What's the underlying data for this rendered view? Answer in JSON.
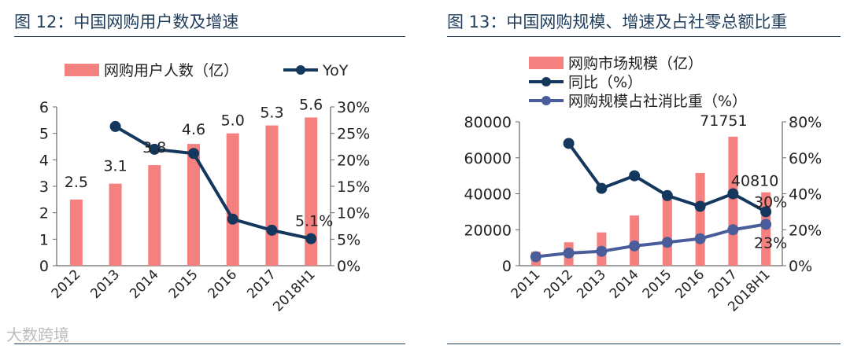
{
  "watermark": "大数跨境",
  "chart_data": [
    {
      "type": "bar",
      "title": "图 12：中国网购用户数及增速",
      "categories": [
        "2012",
        "2013",
        "2014",
        "2015",
        "2016",
        "2017",
        "2018H1"
      ],
      "series": [
        {
          "name": "网购用户人数（亿）",
          "kind": "bar",
          "axis": "left",
          "color": "#f58080",
          "values": [
            2.5,
            3.1,
            3.8,
            4.6,
            5.0,
            5.3,
            5.6
          ],
          "labels": [
            "2.5",
            "3.1",
            "3.8",
            "4.6",
            "5.0",
            "5.3",
            "5.6"
          ]
        },
        {
          "name": "YoY",
          "kind": "line",
          "axis": "right",
          "color": "#14375e",
          "values": [
            null,
            26.3,
            22.0,
            21.2,
            8.8,
            6.7,
            5.1
          ],
          "labels": [
            null,
            null,
            null,
            null,
            null,
            null,
            "5.1%"
          ]
        }
      ],
      "yleft": {
        "min": 0,
        "max": 6,
        "ticks": [
          "0",
          "1",
          "2",
          "3",
          "4",
          "5",
          "6"
        ]
      },
      "yright": {
        "min": 0,
        "max": 30,
        "ticks": [
          "0%",
          "5%",
          "10%",
          "15%",
          "20%",
          "25%",
          "30%"
        ]
      }
    },
    {
      "type": "bar",
      "title": "图 13：中国网购规模、增速及占社零总额比重",
      "categories": [
        "2011",
        "2012",
        "2013",
        "2014",
        "2015",
        "2016",
        "2017",
        "2018H1"
      ],
      "series": [
        {
          "name": "网购市场规模（亿）",
          "kind": "bar",
          "axis": "left",
          "color": "#f58080",
          "values": [
            7800,
            13000,
            18500,
            27900,
            38800,
            51600,
            71751,
            40810
          ],
          "labels": [
            null,
            null,
            null,
            null,
            null,
            null,
            "71751",
            "40810"
          ]
        },
        {
          "name": "同比（%）",
          "kind": "line",
          "axis": "right",
          "color": "#14375e",
          "values": [
            null,
            68,
            43,
            50,
            39,
            33,
            40,
            30
          ],
          "labels": [
            null,
            null,
            null,
            null,
            null,
            null,
            null,
            "30%"
          ]
        },
        {
          "name": "网购规模占社消比重（%）",
          "kind": "line",
          "axis": "right",
          "color": "#4a5d9a",
          "values": [
            5,
            7,
            8,
            11,
            13,
            15,
            20,
            23
          ],
          "labels": [
            null,
            null,
            null,
            null,
            null,
            null,
            null,
            "23%"
          ]
        }
      ],
      "yleft": {
        "min": 0,
        "max": 80000,
        "ticks": [
          "0",
          "20000",
          "40000",
          "60000",
          "80000"
        ]
      },
      "yright": {
        "min": 0,
        "max": 80,
        "ticks": [
          "0%",
          "20%",
          "40%",
          "60%",
          "80%"
        ]
      }
    }
  ]
}
